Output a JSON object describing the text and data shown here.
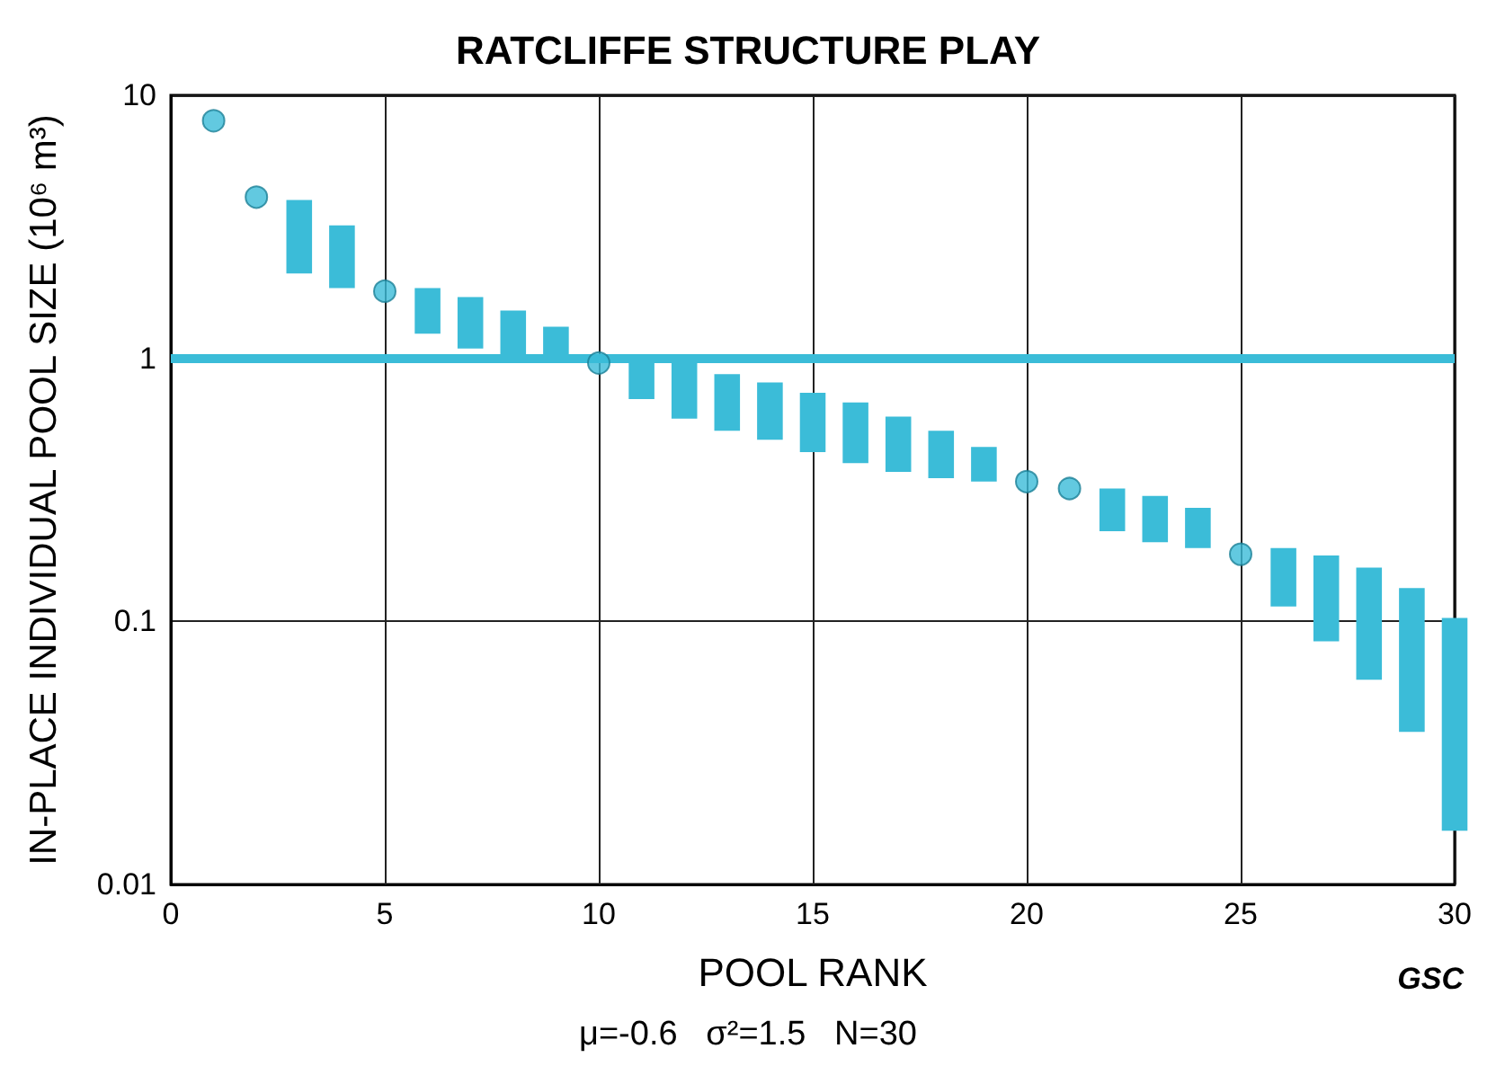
{
  "chart_data": {
    "type": "bar",
    "title": "RATCLIFFE STRUCTURE PLAY",
    "xlabel": "POOL RANK",
    "ylabel": "IN-PLACE INDIVIDUAL POOL SIZE (10⁶ m³)",
    "annotations": [
      "μ=-0.6   σ²=1.5   N=30",
      "GSC"
    ],
    "series": [
      {
        "color": "#3bbcd8",
        "x": [
          3,
          4,
          6,
          7,
          8,
          9,
          11,
          12,
          13,
          14,
          15,
          16,
          17,
          18,
          19,
          22,
          23,
          24,
          26,
          27,
          28,
          29,
          30
        ],
        "base": [
          2.1,
          1.85,
          1.24,
          1.09,
          1.0,
          1.0,
          0.7,
          0.59,
          0.53,
          0.49,
          0.44,
          0.4,
          0.37,
          0.35,
          0.34,
          0.22,
          0.2,
          0.19,
          0.114,
          0.084,
          0.06,
          0.038,
          0.016
        ],
        "values": [
          1.9,
          1.35,
          0.61,
          0.62,
          0.52,
          0.32,
          0.3,
          0.41,
          0.34,
          0.32,
          0.3,
          0.28,
          0.23,
          0.18,
          0.12,
          0.1,
          0.1,
          0.08,
          0.076,
          0.094,
          0.1,
          0.096,
          0.087
        ]
      },
      {
        "type": "scatter",
        "color": "#3bbcd8",
        "marker": "circle",
        "x": [
          1,
          2,
          5,
          10,
          20,
          21,
          25
        ],
        "values": [
          8,
          4.1,
          1.8,
          0.96,
          0.34,
          0.32,
          0.18
        ]
      }
    ],
    "ref_lines": [
      {
        "axis": "y",
        "value": 1,
        "color": "#3bbcd8"
      }
    ],
    "log": "y",
    "xlim": [
      0,
      30
    ],
    "xticks": [
      0,
      5,
      10,
      15,
      20,
      25,
      30
    ],
    "ylim": [
      0.01,
      10
    ],
    "yticks": [
      0.01,
      0.1,
      1,
      10
    ],
    "grid": true
  }
}
